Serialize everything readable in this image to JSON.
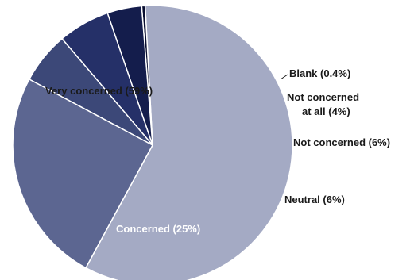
{
  "chart_data": {
    "type": "pie",
    "title": "",
    "slices": [
      {
        "label": "Very concerned (59%)",
        "value": 59,
        "color": "#a4aac4"
      },
      {
        "label": "Concerned (25%)",
        "value": 25,
        "color": "#5c6691"
      },
      {
        "label": "Neutral (6%)",
        "value": 6,
        "color": "#3c4878"
      },
      {
        "label": "Not concerned (6%)",
        "value": 6,
        "color": "#253068"
      },
      {
        "label": "Not concerned at all (4%)",
        "label_lines": [
          "Not concerned",
          "at all (4%)"
        ],
        "value": 4,
        "color": "#141d4c"
      },
      {
        "label": "Blank (0.4%)",
        "value": 0.4,
        "color": "#0a0f30"
      }
    ]
  }
}
